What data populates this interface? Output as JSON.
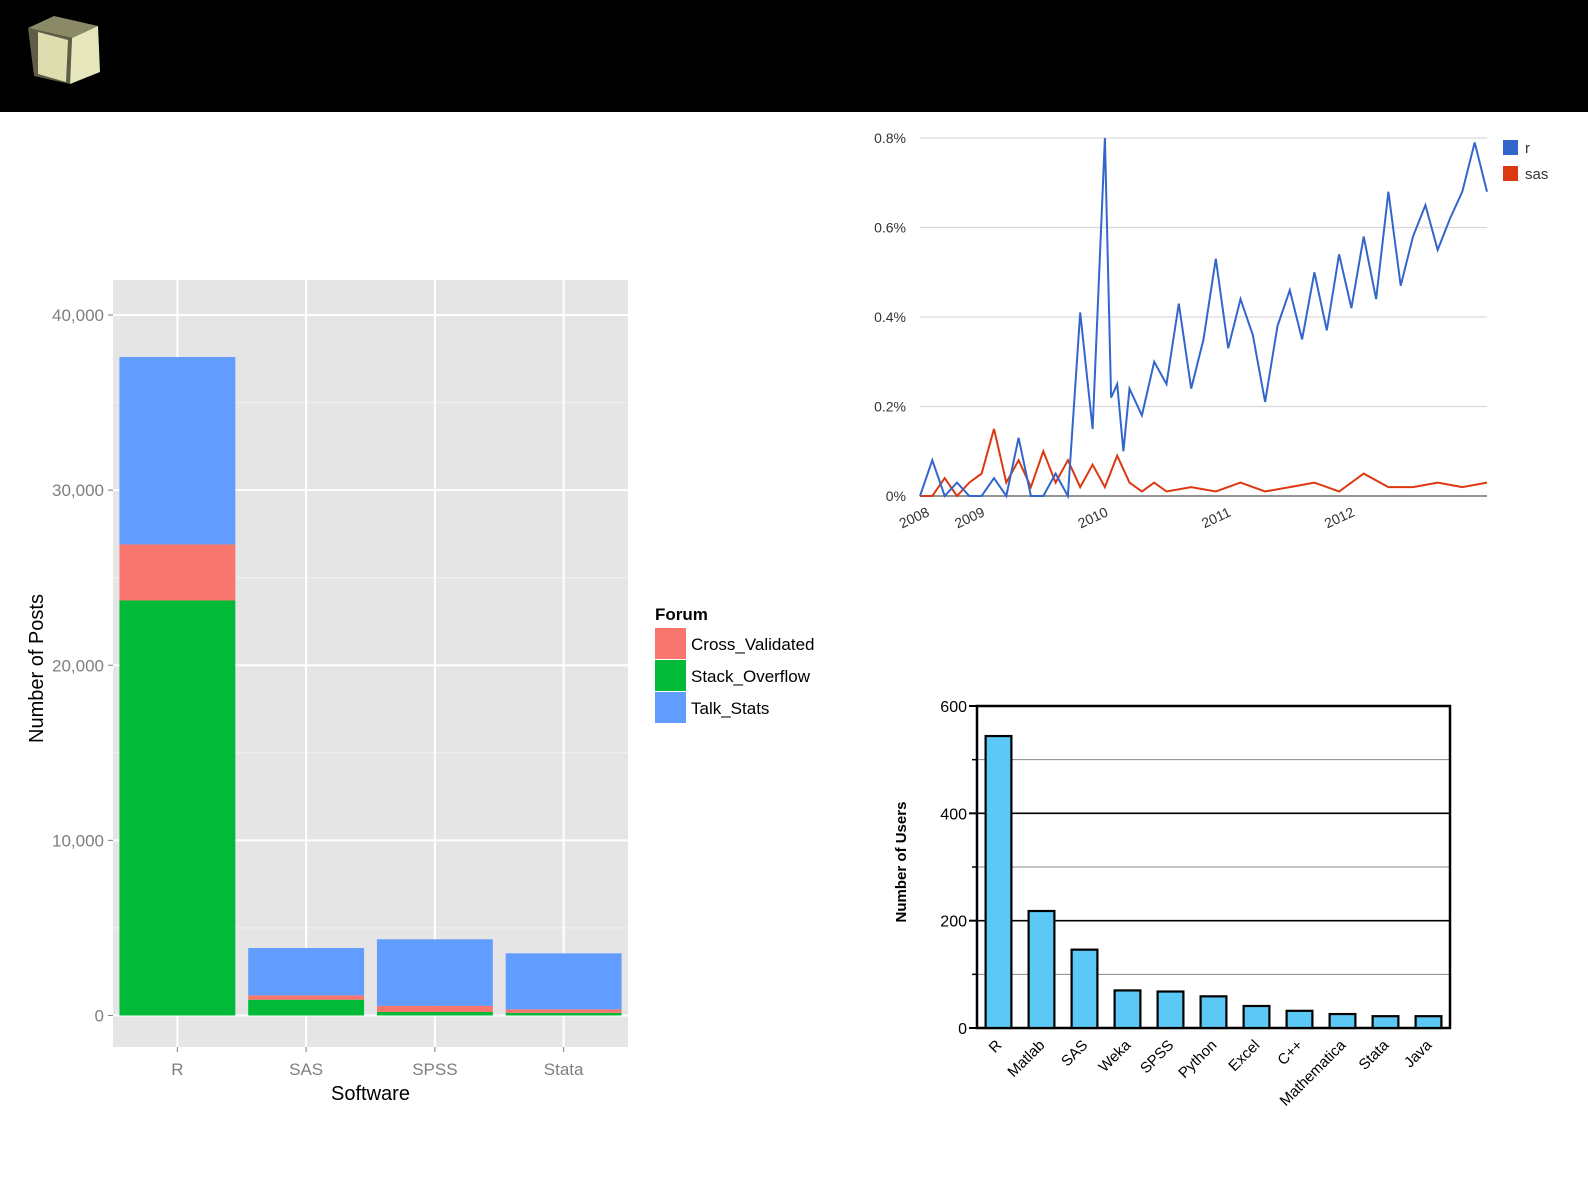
{
  "colors": {
    "cross_validated": "#F8766D",
    "stack_overflow": "#00BA38",
    "talk_stats": "#619CFF",
    "ggplot_panel": "#E5E5E5",
    "r_line": "#3366CC",
    "sas_line": "#DC3912",
    "users_bar": "#5BC8F5",
    "header": "#000000"
  },
  "header": {
    "logo_icon": "cube-icon"
  },
  "chart_data": [
    {
      "type": "bar",
      "stacked": true,
      "xlabel": "Software",
      "ylabel": "Number of Posts",
      "categories": [
        "R",
        "SAS",
        "SPSS",
        "Stata"
      ],
      "yticks": [
        0,
        10000,
        20000,
        30000,
        40000
      ],
      "ytick_labels": [
        "0",
        "10,000",
        "20,000",
        "30,000",
        "40,000"
      ],
      "ylim": [
        -1800,
        42000
      ],
      "legend_title": "Forum",
      "legend_position": "right",
      "grid": true,
      "series": [
        {
          "name": "Stack_Overflow",
          "values": [
            23700,
            900,
            200,
            150
          ]
        },
        {
          "name": "Cross_Validated",
          "values": [
            3200,
            250,
            350,
            200
          ]
        },
        {
          "name": "Talk_Stats",
          "values": [
            10700,
            2700,
            3800,
            3200
          ]
        }
      ]
    },
    {
      "type": "line",
      "x_tick_labels": [
        "2008",
        "2009",
        "2010",
        "2011",
        "2012"
      ],
      "y_tick_labels": [
        "0%",
        "0.2%",
        "0.4%",
        "0.6%",
        "0.8%"
      ],
      "ylim": [
        0,
        0.8
      ],
      "legend_position": "top-right",
      "grid": true,
      "series": [
        {
          "name": "r",
          "x": [
            2008.0,
            2008.1,
            2008.2,
            2008.3,
            2008.4,
            2008.5,
            2008.6,
            2008.7,
            2008.8,
            2008.9,
            2009.0,
            2009.1,
            2009.2,
            2009.3,
            2009.4,
            2009.5,
            2009.55,
            2009.6,
            2009.65,
            2009.7,
            2009.8,
            2009.9,
            2010.0,
            2010.1,
            2010.2,
            2010.3,
            2010.4,
            2010.5,
            2010.6,
            2010.7,
            2010.8,
            2010.9,
            2011.0,
            2011.1,
            2011.2,
            2011.3,
            2011.4,
            2011.5,
            2011.6,
            2011.7,
            2011.8,
            2011.9,
            2012.0,
            2012.1,
            2012.2,
            2012.3,
            2012.4,
            2012.5,
            2012.6
          ],
          "values": [
            0.0,
            0.08,
            0.0,
            0.03,
            0.0,
            0.0,
            0.04,
            0.0,
            0.13,
            0.0,
            0.0,
            0.05,
            0.0,
            0.41,
            0.15,
            0.8,
            0.22,
            0.25,
            0.1,
            0.24,
            0.18,
            0.3,
            0.25,
            0.43,
            0.24,
            0.35,
            0.53,
            0.33,
            0.44,
            0.36,
            0.21,
            0.38,
            0.46,
            0.35,
            0.5,
            0.37,
            0.54,
            0.42,
            0.58,
            0.44,
            0.68,
            0.47,
            0.58,
            0.65,
            0.55,
            0.62,
            0.68,
            0.79,
            0.68
          ]
        },
        {
          "name": "sas",
          "x": [
            2008.0,
            2008.1,
            2008.2,
            2008.3,
            2008.4,
            2008.5,
            2008.6,
            2008.7,
            2008.8,
            2008.9,
            2009.0,
            2009.1,
            2009.2,
            2009.3,
            2009.4,
            2009.5,
            2009.6,
            2009.7,
            2009.8,
            2009.9,
            2010.0,
            2010.2,
            2010.4,
            2010.6,
            2010.8,
            2011.0,
            2011.2,
            2011.4,
            2011.6,
            2011.8,
            2012.0,
            2012.2,
            2012.4,
            2012.6
          ],
          "values": [
            0.0,
            0.0,
            0.04,
            0.0,
            0.03,
            0.05,
            0.15,
            0.03,
            0.08,
            0.02,
            0.1,
            0.03,
            0.08,
            0.02,
            0.07,
            0.02,
            0.09,
            0.03,
            0.01,
            0.03,
            0.01,
            0.02,
            0.01,
            0.03,
            0.01,
            0.02,
            0.03,
            0.01,
            0.05,
            0.02,
            0.02,
            0.03,
            0.02,
            0.03
          ]
        }
      ]
    },
    {
      "type": "bar",
      "ylabel": "Number of Users",
      "categories": [
        "R",
        "Matlab",
        "SAS",
        "Weka",
        "SPSS",
        "Python",
        "Excel",
        "C++",
        "Mathematica",
        "Stata",
        "Java"
      ],
      "values": [
        544,
        218,
        146,
        70,
        68,
        59,
        41,
        32,
        26,
        22,
        22
      ],
      "yticks": [
        0,
        200,
        400,
        600
      ],
      "ylim": [
        0,
        600
      ],
      "grid": true
    }
  ]
}
